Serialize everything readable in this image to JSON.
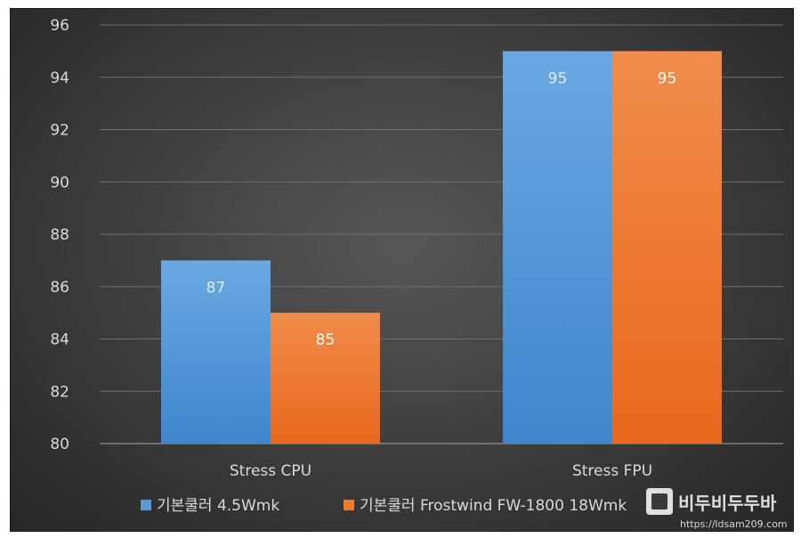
{
  "chart_data": {
    "type": "bar",
    "title": "",
    "xlabel": "",
    "ylabel": "",
    "categories": [
      "Stress CPU",
      "Stress FPU"
    ],
    "series": [
      {
        "name": "기본쿨러 4.5Wmk",
        "values": [
          87,
          95
        ],
        "color": "#5b9bd5"
      },
      {
        "name": "기본쿨러 Frostwind FW-1800 18Wmk",
        "values": [
          85,
          95
        ],
        "color": "#ed7d31"
      }
    ],
    "ylim": [
      80,
      96
    ],
    "yticks": [
      80,
      82,
      84,
      86,
      88,
      90,
      92,
      94,
      96
    ],
    "grid": true,
    "legend": "bottom",
    "data_labels": true
  },
  "watermark": {
    "text": "비두비두두바",
    "url": "https://ldsam209.com"
  }
}
